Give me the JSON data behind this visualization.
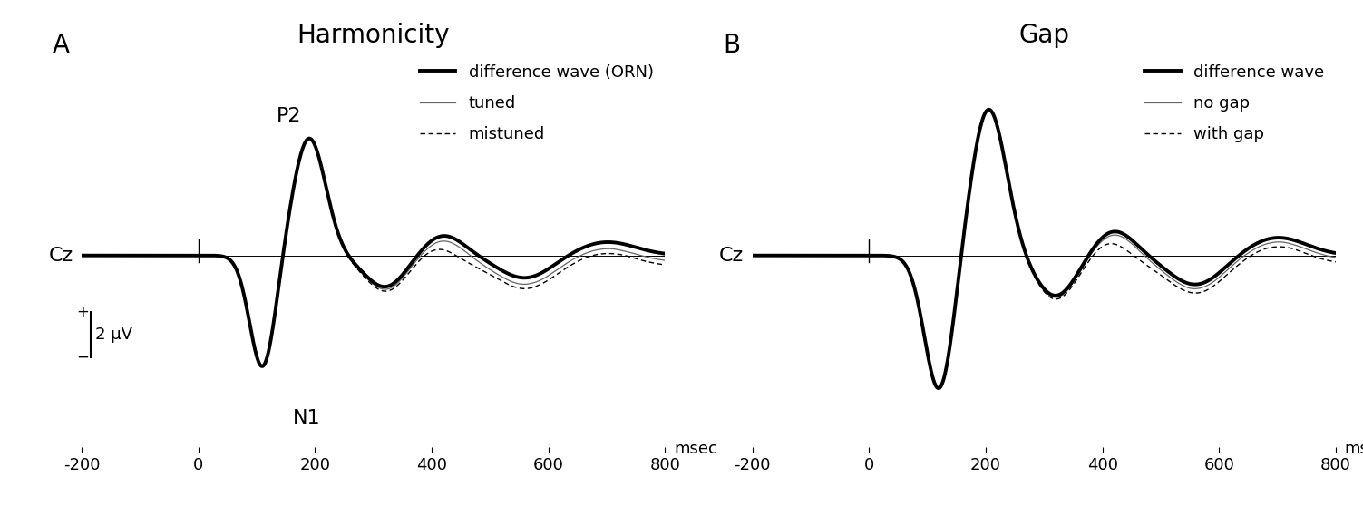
{
  "panel_A_title": "Harmonicity",
  "panel_B_title": "Gap",
  "panel_A_label": "A",
  "panel_B_label": "B",
  "xlabel": "msec",
  "cz_label": "Cz",
  "scale_label": "2 μV",
  "P2_label": "P2",
  "N1_label": "N1",
  "xmin": -200,
  "xmax": 800,
  "legend_A": [
    "difference wave (ORN)",
    "tuned",
    "mistuned"
  ],
  "legend_B": [
    "difference wave",
    "no gap",
    "with gap"
  ],
  "background_color": "#ffffff",
  "title_fontsize": 20,
  "label_fontsize": 16,
  "tick_fontsize": 13,
  "legend_fontsize": 13,
  "xticks": [
    -200,
    0,
    200,
    400,
    600,
    800
  ]
}
